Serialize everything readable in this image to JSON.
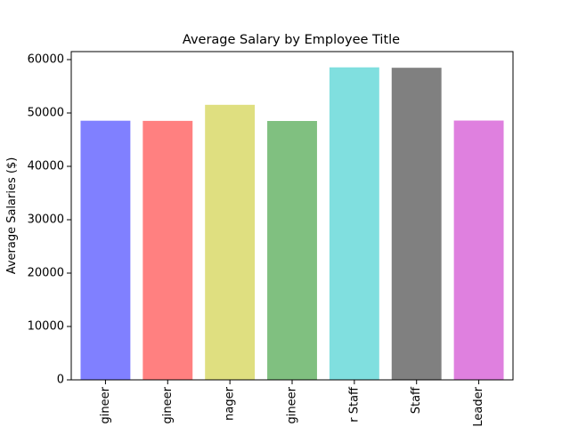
{
  "chart_data": {
    "type": "bar",
    "title": "Average Salary by Employee Title",
    "xlabel": "",
    "ylabel": "Average Salaries ($)",
    "categories": [
      "gineer",
      "gineer",
      "nager",
      "gineer",
      "r Staff",
      "Staff",
      "Leader"
    ],
    "values": [
      48550,
      48520,
      51530,
      48500,
      58550,
      58470,
      48580
    ],
    "colors": [
      "#8080ff",
      "#ff8080",
      "#dfdf80",
      "#80c080",
      "#80dfdf",
      "#808080",
      "#df80df"
    ],
    "ylim": [
      0,
      61500
    ],
    "yticks": [
      0,
      10000,
      20000,
      30000,
      40000,
      50000,
      60000
    ],
    "ytick_labels": [
      "0",
      "10000",
      "20000",
      "30000",
      "40000",
      "50000",
      "60000"
    ],
    "grid": false,
    "legend": "none"
  }
}
